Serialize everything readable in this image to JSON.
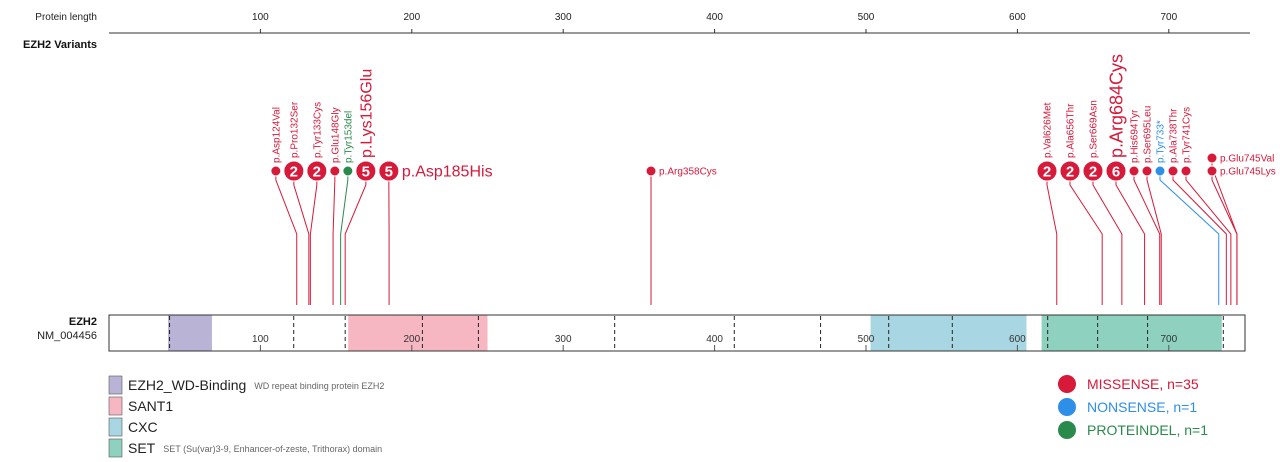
{
  "header": {
    "length_label": "Protein length",
    "track_label": "EZH2 Variants"
  },
  "axis": {
    "min": 0,
    "max": 751,
    "ticks": [
      100,
      200,
      300,
      400,
      500,
      600,
      700
    ]
  },
  "protein": {
    "gene": "EZH2",
    "transcript": "NM_004456",
    "length": 751,
    "inner_ticks": [
      100,
      200,
      300,
      400,
      500,
      600,
      700
    ],
    "exon_boundaries": [
      40,
      122,
      156,
      207,
      244,
      334,
      413,
      470,
      515,
      557,
      620,
      653,
      686,
      736
    ]
  },
  "domains": [
    {
      "name": "EZH2_WD-Binding",
      "description": "WD repeat binding protein EZH2",
      "start": 39,
      "end": 68,
      "color": "#b9b4d6"
    },
    {
      "name": "SANT1",
      "description": "",
      "start": 158,
      "end": 250,
      "color": "#f6b7c2"
    },
    {
      "name": "CXC",
      "description": "",
      "start": 503,
      "end": 606,
      "color": "#a9d6e3"
    },
    {
      "name": "SET",
      "description": "SET (Su(var)3-9, Enhancer-of-zeste, Trithorax) domain",
      "start": 616,
      "end": 735,
      "color": "#8ed1bf"
    }
  ],
  "variant_types": [
    {
      "type": "MISSENSE",
      "label": "MISSENSE, n=35",
      "color": "#d7193a"
    },
    {
      "type": "NONSENSE",
      "label": "NONSENSE, n=1",
      "color": "#2e8fe8"
    },
    {
      "type": "PROTEINDEL",
      "label": "PROTEINDEL, n=1",
      "color": "#2a8a4c"
    }
  ],
  "variants": [
    {
      "label": "p.Asp124Val",
      "position": 124,
      "count": 1,
      "type": "MISSENSE"
    },
    {
      "label": "p.Pro132Ser",
      "position": 132,
      "count": 2,
      "type": "MISSENSE"
    },
    {
      "label": "p.Tyr133Cys",
      "position": 133,
      "count": 2,
      "type": "MISSENSE"
    },
    {
      "label": "p.Glu148Gly",
      "position": 148,
      "count": 1,
      "type": "MISSENSE"
    },
    {
      "label": "p.Tyr153del",
      "position": 153,
      "count": 1,
      "type": "PROTEINDEL"
    },
    {
      "label": "p.Lys156Glu",
      "position": 156,
      "count": 5,
      "type": "MISSENSE"
    },
    {
      "label": "p.Asp185His",
      "position": 185,
      "count": 5,
      "type": "MISSENSE"
    },
    {
      "label": "p.Arg358Cys",
      "position": 358,
      "count": 1,
      "type": "MISSENSE"
    },
    {
      "label": "p.Val626Met",
      "position": 626,
      "count": 2,
      "type": "MISSENSE"
    },
    {
      "label": "p.Ala656Thr",
      "position": 656,
      "count": 2,
      "type": "MISSENSE"
    },
    {
      "label": "p.Ser669Asn",
      "position": 669,
      "count": 2,
      "type": "MISSENSE"
    },
    {
      "label": "p.Arg684Cys",
      "position": 684,
      "count": 6,
      "type": "MISSENSE"
    },
    {
      "label": "p.His694Tyr",
      "position": 694,
      "count": 1,
      "type": "MISSENSE"
    },
    {
      "label": "p.Ser695Leu",
      "position": 695,
      "count": 1,
      "type": "MISSENSE"
    },
    {
      "label": "p.Tyr733*",
      "position": 733,
      "count": 1,
      "type": "NONSENSE"
    },
    {
      "label": "p.Ala738Thr",
      "position": 738,
      "count": 1,
      "type": "MISSENSE"
    },
    {
      "label": "p.Tyr741Cys",
      "position": 741,
      "count": 1,
      "type": "MISSENSE"
    },
    {
      "label": "p.Glu745Val",
      "position": 745,
      "count": 1,
      "type": "MISSENSE"
    },
    {
      "label": "p.Glu745Lys",
      "position": 745,
      "count": 1,
      "type": "MISSENSE"
    }
  ]
}
